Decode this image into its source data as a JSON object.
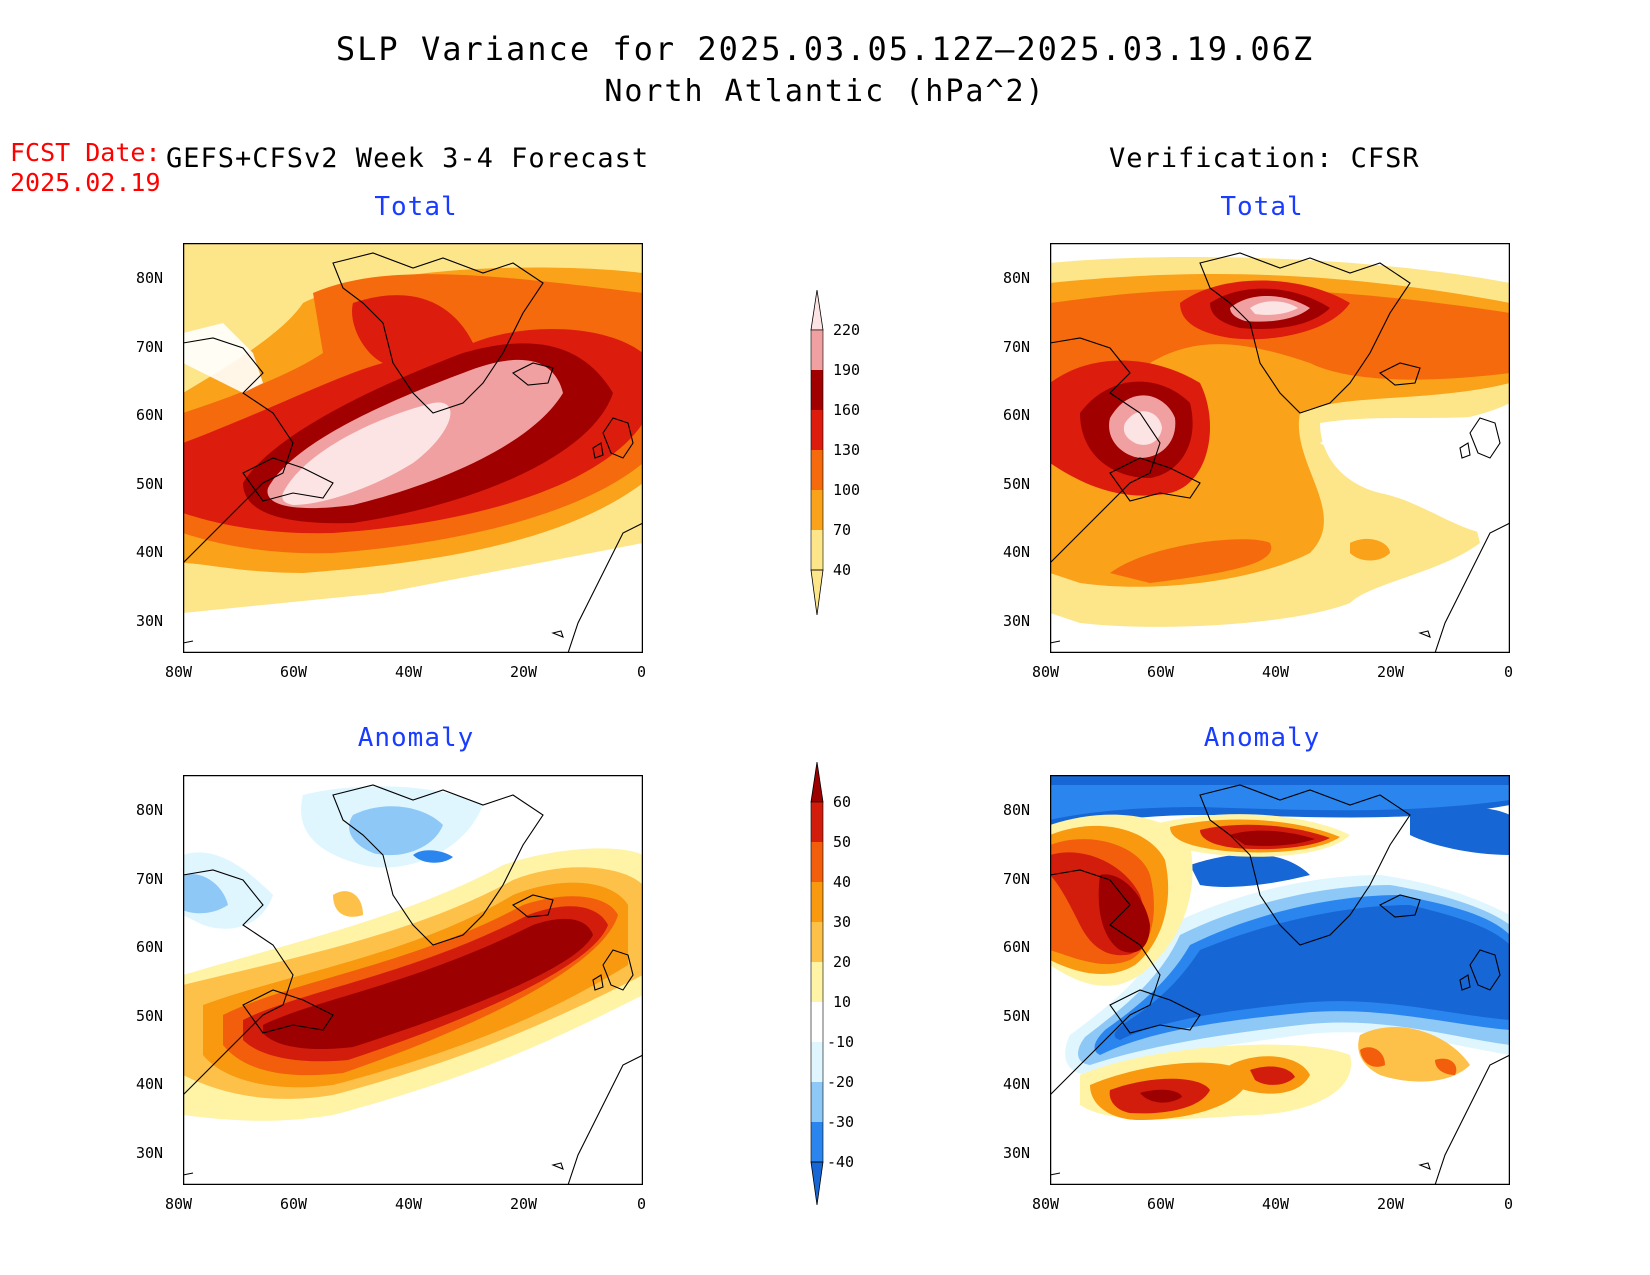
{
  "title": {
    "line1": "SLP Variance for 2025.03.05.12Z–2025.03.19.06Z",
    "line2": "North Atlantic (hPa^2)"
  },
  "forecast_date": {
    "label": "FCST Date:",
    "value": "2025.02.19"
  },
  "headers": {
    "left": "GEFS+CFSv2 Week 3-4 Forecast",
    "right": "Verification: CFSR"
  },
  "panels": [
    {
      "id": "fc-total",
      "title": "Total"
    },
    {
      "id": "vf-total",
      "title": "Total"
    },
    {
      "id": "fc-anom",
      "title": "Anomaly"
    },
    {
      "id": "vf-anom",
      "title": "Anomaly"
    }
  ],
  "axes": {
    "lon_ticks": [
      "80W",
      "60W",
      "40W",
      "20W",
      "0"
    ],
    "lat_ticks": [
      "80N",
      "70N",
      "60N",
      "50N",
      "40N",
      "30N"
    ],
    "lon_range": [
      -80,
      0
    ],
    "lat_range": [
      25,
      85
    ]
  },
  "colorbars": {
    "total": {
      "labels": [
        "40",
        "70",
        "100",
        "130",
        "160",
        "190",
        "220"
      ],
      "colors": [
        "#fde68a",
        "#f9a21a",
        "#f56a0c",
        "#dc1c0c",
        "#a00000",
        "#f0a0a0",
        "#fde4e4"
      ]
    },
    "anomaly": {
      "labels": [
        "-40",
        "-30",
        "-20",
        "-10",
        "10",
        "20",
        "30",
        "40",
        "50",
        "60"
      ],
      "colors": [
        "#1666d6",
        "#2a86ee",
        "#8ec8f6",
        "#dff6ff",
        "#ffffff",
        "#fff3a6",
        "#fdc14a",
        "#f8990f",
        "#f25e0b",
        "#d21c0c",
        "#9c0000"
      ]
    }
  },
  "chart_data": [
    {
      "type": "heatmap",
      "title": "Total",
      "description_units": "hPa^2",
      "levels": [
        40,
        70,
        100,
        130,
        160,
        190,
        220
      ],
      "features": [
        {
          "name": "max",
          "lon": -45,
          "lat": 52,
          "value": 220
        },
        {
          "name": "max-east",
          "lon": -25,
          "lat": 57,
          "value": 190
        }
      ]
    },
    {
      "type": "heatmap",
      "title": "Total",
      "levels": [
        40,
        70,
        100,
        130,
        160,
        190,
        220
      ],
      "features": [
        {
          "name": "max-1",
          "lon": -63,
          "lat": 56,
          "value": 220
        },
        {
          "name": "max-2",
          "lon": -40,
          "lat": 74,
          "value": 220
        }
      ]
    },
    {
      "type": "heatmap",
      "title": "Anomaly",
      "levels": [
        -40,
        -30,
        -20,
        -10,
        10,
        20,
        30,
        40,
        50,
        60
      ],
      "features": [
        {
          "name": "max",
          "lon": -35,
          "lat": 54,
          "value": 60
        },
        {
          "name": "min",
          "lon": -42,
          "lat": 75,
          "value": -40
        }
      ]
    },
    {
      "type": "heatmap",
      "title": "Anomaly",
      "levels": [
        -40,
        -30,
        -20,
        -10,
        10,
        20,
        30,
        40,
        50,
        60
      ],
      "features": [
        {
          "name": "max-1",
          "lon": -64,
          "lat": 56,
          "value": 60
        },
        {
          "name": "max-2",
          "lon": -40,
          "lat": 75,
          "value": 60
        },
        {
          "name": "min",
          "lon": -25,
          "lat": 57,
          "value": -40
        }
      ]
    }
  ]
}
